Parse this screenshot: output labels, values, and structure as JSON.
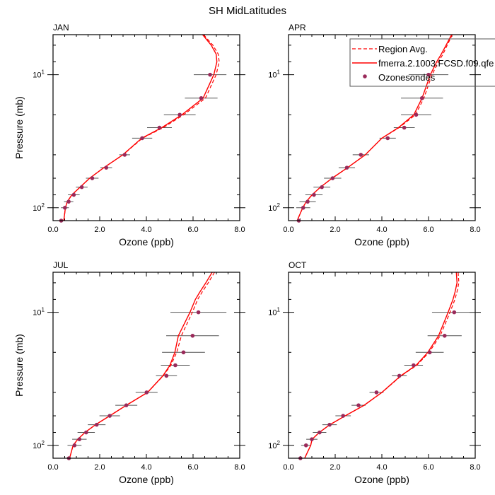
{
  "title": "SH MidLatitudes",
  "chart_data": {
    "type": "line",
    "title": "SH MidLatitudes",
    "xlabel": "Ozone (ppb)",
    "ylabel": "Pressure (mb)",
    "xlim": [
      0,
      8
    ],
    "ylim": [
      125,
      5
    ],
    "yscale": "log",
    "xticks": [
      "0.0",
      "2.0",
      "4.0",
      "6.0",
      "8.0"
    ],
    "yticks": [
      {
        "value": 10,
        "base": "10",
        "exp": "1"
      },
      {
        "value": 100,
        "base": "10",
        "exp": "2"
      }
    ],
    "legend": {
      "placement": "top-right of APR panel",
      "entries": [
        "Region Avg.",
        "fmerra.2.1003.FCSD.f09.qfe",
        "Ozonesondes"
      ]
    },
    "colors": {
      "model": "#ff0000",
      "obs": "#9a2a5a",
      "errorbar": "#555555"
    },
    "obs_pressure": [
      10,
      15,
      20,
      25,
      30,
      40,
      50,
      60,
      70,
      80,
      90,
      100,
      125
    ],
    "model_pressure": [
      5,
      6,
      7,
      8,
      10,
      15,
      20,
      25,
      30,
      40,
      50,
      60,
      70,
      80,
      90,
      100,
      125
    ],
    "panels": [
      {
        "label": "JAN",
        "obs": [
          6.73,
          6.35,
          5.43,
          4.56,
          3.82,
          3.07,
          2.28,
          1.68,
          1.23,
          0.89,
          0.67,
          0.51,
          0.35
        ],
        "obs_err": [
          0.7,
          0.7,
          0.68,
          0.53,
          0.43,
          0.23,
          0.25,
          0.27,
          0.25,
          0.25,
          0.2,
          0.17,
          0
        ],
        "model": [
          6.41,
          6.78,
          6.99,
          7.02,
          6.89,
          6.43,
          5.52,
          4.66,
          3.8,
          2.99,
          2.18,
          1.57,
          1.16,
          0.81,
          0.61,
          0.53,
          0.46
        ],
        "region_avg": [
          6.45,
          6.85,
          7.08,
          7.12,
          6.99,
          6.53,
          5.6,
          4.72,
          3.83,
          3.0,
          2.18,
          1.57,
          1.16,
          0.81,
          0.61,
          0.53,
          0.46
        ]
      },
      {
        "label": "APR",
        "obs": [
          6.0,
          5.72,
          5.47,
          4.96,
          4.25,
          3.1,
          2.5,
          1.89,
          1.43,
          1.09,
          0.82,
          0.63,
          0.44
        ],
        "obs_err": [
          0.85,
          0.9,
          0.65,
          0.45,
          0.35,
          0.35,
          0.35,
          0.37,
          0.36,
          0.37,
          0.35,
          0.3,
          0
        ],
        "model": [
          6.99,
          6.75,
          6.55,
          6.35,
          6.08,
          5.72,
          5.37,
          4.71,
          4.0,
          3.29,
          2.53,
          1.87,
          1.37,
          1.01,
          0.76,
          0.61,
          0.37
        ],
        "region_avg": [
          7.02,
          6.8,
          6.62,
          6.42,
          6.15,
          5.8,
          5.44,
          4.74,
          4.0,
          3.29,
          2.53,
          1.87,
          1.37,
          1.01,
          0.76,
          0.61,
          0.37
        ]
      },
      {
        "label": "JUL",
        "obs": [
          6.23,
          5.98,
          5.59,
          5.24,
          4.86,
          4.01,
          3.14,
          2.43,
          1.87,
          1.42,
          1.13,
          0.92,
          0.68
        ],
        "obs_err": [
          1.2,
          1.13,
          0.92,
          0.62,
          0.45,
          0.47,
          0.47,
          0.44,
          0.38,
          0.37,
          0.31,
          0.3,
          0
        ],
        "model": [
          6.82,
          6.55,
          6.3,
          6.1,
          5.87,
          5.37,
          5.22,
          5.01,
          4.71,
          4.05,
          3.14,
          2.43,
          1.82,
          1.37,
          1.06,
          0.86,
          0.71
        ],
        "region_avg": [
          6.92,
          6.65,
          6.4,
          6.2,
          5.97,
          5.5,
          5.3,
          5.05,
          4.72,
          4.05,
          3.14,
          2.43,
          1.82,
          1.37,
          1.06,
          0.86,
          0.71
        ]
      },
      {
        "label": "OCT",
        "obs": [
          7.1,
          6.69,
          6.05,
          5.36,
          4.75,
          3.77,
          3.0,
          2.34,
          1.76,
          1.33,
          1.0,
          0.75,
          0.51
        ],
        "obs_err": [
          0.95,
          0.73,
          0.6,
          0.4,
          0.32,
          0.3,
          0.3,
          0.33,
          0.31,
          0.29,
          0.24,
          0.21,
          0
        ],
        "model": [
          7.19,
          7.22,
          7.14,
          7.05,
          6.84,
          6.43,
          5.97,
          5.47,
          4.81,
          4.0,
          3.24,
          2.43,
          1.77,
          1.32,
          1.01,
          0.95,
          0.69
        ],
        "region_avg": [
          7.27,
          7.3,
          7.22,
          7.13,
          6.92,
          6.5,
          6.02,
          5.5,
          4.83,
          4.01,
          3.24,
          2.43,
          1.77,
          1.32,
          1.01,
          0.95,
          0.69
        ]
      }
    ]
  }
}
